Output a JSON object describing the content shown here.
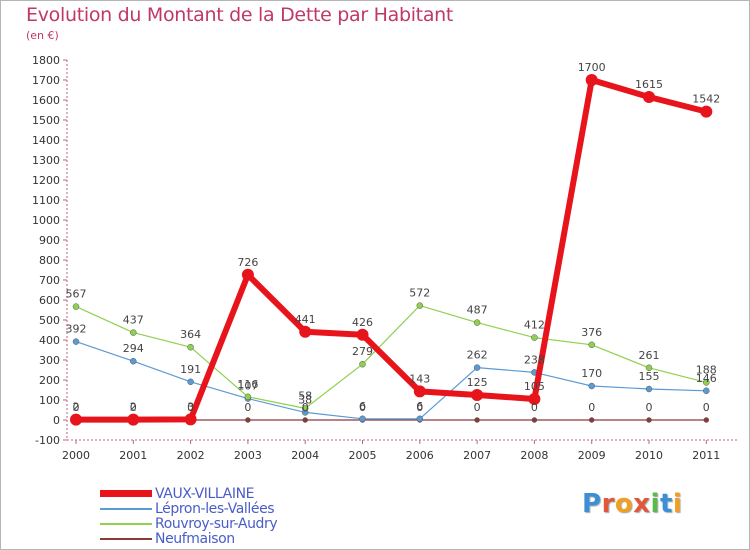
{
  "header": {
    "title": "Evolution du Montant de la Dette par Habitant",
    "subtitle": "(en €)"
  },
  "logo": {
    "text": "Proxiti",
    "colors": [
      "#3b8fd6",
      "#e2563a",
      "#f0a020",
      "#e2563a",
      "#5bb84a",
      "#3b8fd6",
      "#f0a020"
    ]
  },
  "chart_data": {
    "type": "line",
    "title": "Evolution du Montant de la Dette par Habitant",
    "subtitle": "(en €)",
    "x": [
      "2000",
      "2001",
      "2002",
      "2003",
      "2004",
      "2005",
      "2006",
      "2007",
      "2008",
      "2009",
      "2010",
      "2011"
    ],
    "ylim": [
      -100,
      1800
    ],
    "yticks": [
      -100,
      0,
      100,
      200,
      300,
      400,
      500,
      600,
      700,
      800,
      900,
      1000,
      1100,
      1200,
      1300,
      1400,
      1500,
      1600,
      1700,
      1800
    ],
    "grid": false,
    "legend_position": "bottom-left",
    "series": [
      {
        "name": "VAUX-VILLAINE",
        "color": "#e8141b",
        "values": [
          2,
          2,
          3,
          726,
          441,
          426,
          143,
          125,
          105,
          1700,
          1615,
          1542
        ],
        "labels": [
          "2",
          "2",
          "3",
          "726",
          "441",
          "426",
          "143",
          "125",
          "105",
          "1700",
          "1615",
          "1542"
        ]
      },
      {
        "name": "Lépron-les-Vallées",
        "color": "#5b9bd5",
        "values": [
          392,
          294,
          191,
          107,
          38,
          6,
          6,
          262,
          238,
          170,
          155,
          146
        ],
        "labels": [
          "392",
          "294",
          "191",
          "107",
          "38",
          "6",
          "6",
          "262",
          "238",
          "170",
          "155",
          "146"
        ]
      },
      {
        "name": "Rouvroy-sur-Audry",
        "color": "#8fd14f",
        "values": [
          567,
          437,
          364,
          116,
          58,
          279,
          572,
          487,
          412,
          376,
          261,
          188
        ],
        "labels": [
          "567",
          "437",
          "364",
          "116",
          "58",
          "279",
          "572",
          "487",
          "412",
          "376",
          "261",
          "188"
        ]
      },
      {
        "name": "Neufmaison",
        "color": "#8b3a3a",
        "values": [
          0,
          0,
          0,
          0,
          0,
          0,
          0,
          0,
          0,
          0,
          0,
          0
        ],
        "labels": [
          "0",
          "0",
          "0",
          "0",
          "0",
          "0",
          "0",
          "0",
          "0",
          "0",
          "0",
          "0"
        ]
      }
    ]
  }
}
